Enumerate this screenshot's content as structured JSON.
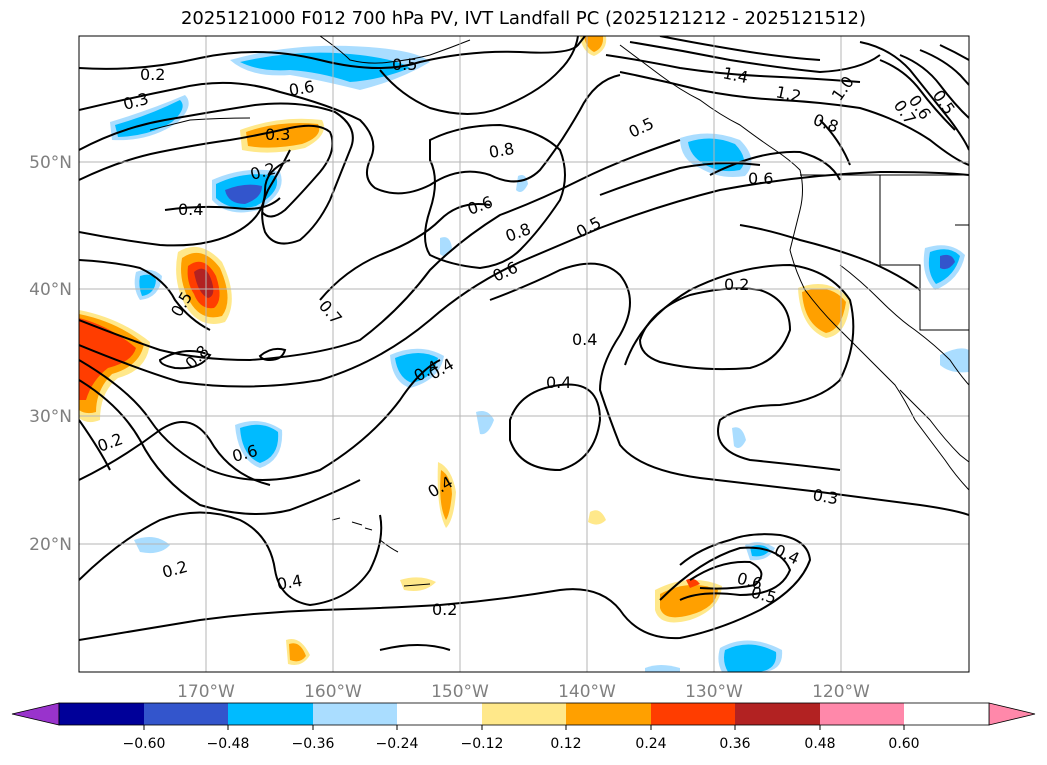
{
  "title": "2025121000 F012 700 hPa PV, IVT Landfall PC (2025121212 - 2025121512)",
  "axes": {
    "lat_labels": [
      "50°N",
      "40°N",
      "30°N",
      "20°N"
    ],
    "lon_labels": [
      "170°W",
      "160°W",
      "150°W",
      "140°W",
      "130°W",
      "120°W"
    ]
  },
  "colorbar": {
    "ticks": [
      "−0.60",
      "−0.48",
      "−0.36",
      "−0.24",
      "−0.12",
      "0.12",
      "0.24",
      "0.36",
      "0.48",
      "0.60"
    ],
    "colors": [
      "#9933cc",
      "#000099",
      "#3355cc",
      "#00bbff",
      "#aaddff",
      "#ffffff",
      "#ffe88a",
      "#ffa000",
      "#ff3d00",
      "#b22222",
      "#ff88aa"
    ]
  },
  "contour_labels": [
    "0.2",
    "0.3",
    "0.6",
    "0.5",
    "0.3",
    "0.2",
    "0.4",
    "0.5",
    "0.8",
    "0.7",
    "0.8",
    "0.6",
    "0.8",
    "0.6",
    "0.5",
    "1.4",
    "1.2",
    "0.8",
    "1.0",
    "0.6",
    "0.5",
    "0.7",
    "0.5",
    "0.6",
    "0.2",
    "0.4",
    "0.4",
    "0.4",
    "0.2",
    "0.6",
    "0.4",
    "0.3",
    "0.2",
    "0.4",
    "0.2",
    "0.4",
    "0.6",
    "0.5",
    "0.4"
  ],
  "map_data": {
    "type": "map",
    "field_contour": "700 hPa PV",
    "field_fill": "IVT Landfall PC",
    "lon_range": [
      -180,
      -110
    ],
    "lat_range": [
      10,
      60
    ],
    "gridlines": true
  }
}
